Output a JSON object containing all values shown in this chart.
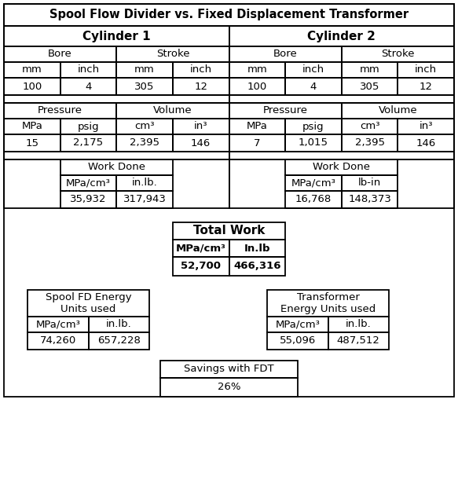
{
  "title": "Spool Flow Divider vs. Fixed Displacement Transformer",
  "cyl1_label": "Cylinder 1",
  "cyl2_label": "Cylinder 2",
  "bore_label": "Bore",
  "stroke_label": "Stroke",
  "mm_label": "mm",
  "inch_label": "inch",
  "cyl1_bore_mm": "100",
  "cyl1_bore_inch": "4",
  "cyl1_stroke_mm": "305",
  "cyl1_stroke_inch": "12",
  "cyl2_bore_mm": "100",
  "cyl2_bore_inch": "4",
  "cyl2_stroke_mm": "305",
  "cyl2_stroke_inch": "12",
  "pressure_label": "Pressure",
  "volume_label": "Volume",
  "mpa_label": "MPa",
  "psig_label": "psig",
  "cm3_label": "cm³",
  "in3_label": "in³",
  "cyl1_mpa": "15",
  "cyl1_psig": "2,175",
  "cyl1_cm3": "2,395",
  "cyl1_in3": "146",
  "cyl2_mpa": "7",
  "cyl2_psig": "1,015",
  "cyl2_cm3": "2,395",
  "cyl2_in3": "146",
  "work_done_label": "Work Done",
  "mpa_cm3_label": "MPa/cm³",
  "in_lb_label": "in.lb.",
  "lb_in_label": "lb-in",
  "cyl1_work_mpa": "35,932",
  "cyl1_work_inlb": "317,943",
  "cyl2_work_mpa": "16,768",
  "cyl2_work_inlb": "148,373",
  "total_work_label": "Total Work",
  "in_lb_total_label": "In.lb",
  "total_work_mpa": "52,700",
  "total_work_inlb": "466,316",
  "spool_fd_label": "Spool FD Energy\nUnits used",
  "transformer_label": "Transformer\nEnergy Units used",
  "spool_mpa": "74,260",
  "spool_inlb": "657,228",
  "transformer_mpa": "55,096",
  "transformer_inlb": "487,512",
  "savings_label": "Savings with FDT",
  "savings_value": "26%",
  "bg_color": "#ffffff",
  "title_fontsize": 10.5,
  "header_fontsize": 11,
  "cell_fontsize": 9.5
}
